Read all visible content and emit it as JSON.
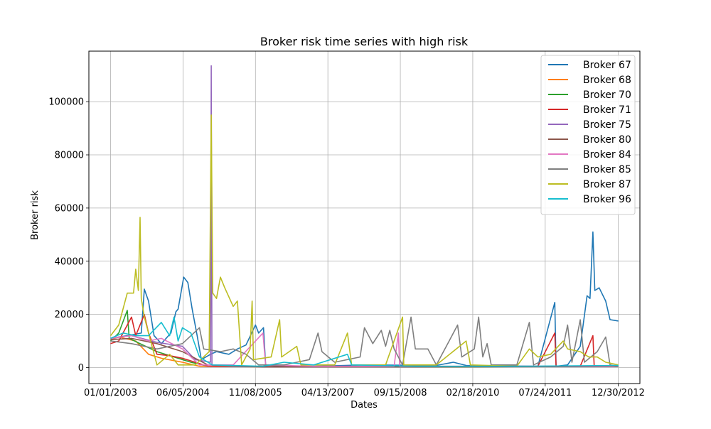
{
  "chart_data": {
    "type": "line",
    "title": "Broker risk time series with high risk",
    "xlabel": "Dates",
    "ylabel": "Broker risk",
    "x_tick_labels": [
      "01/01/2003",
      "06/05/2004",
      "11/08/2005",
      "04/13/2007",
      "09/15/2008",
      "02/18/2010",
      "07/24/2011",
      "12/30/2012"
    ],
    "x_tick_dates": [
      "2003-01-01",
      "2004-06-05",
      "2005-11-08",
      "2007-04-13",
      "2008-09-15",
      "2010-02-18",
      "2011-07-24",
      "2012-12-30"
    ],
    "xlim": [
      "2002-07-29",
      "2013-06-04"
    ],
    "y_ticks": [
      0,
      20000,
      40000,
      60000,
      80000,
      100000
    ],
    "ylim": [
      -6000,
      119000
    ],
    "grid": true,
    "legend_position": "top-right",
    "series": [
      {
        "name": "Broker 67",
        "color": "#1f77b4",
        "points": [
          [
            "2003-01-01",
            11000
          ],
          [
            "2003-05-01",
            12000
          ],
          [
            "2003-08-10",
            13000
          ],
          [
            "2003-09-01",
            29500
          ],
          [
            "2003-10-01",
            25000
          ],
          [
            "2003-11-10",
            12000
          ],
          [
            "2004-01-01",
            9000
          ],
          [
            "2004-03-10",
            13000
          ],
          [
            "2004-04-15",
            21000
          ],
          [
            "2004-05-01",
            22000
          ],
          [
            "2004-06-10",
            34000
          ],
          [
            "2004-07-10",
            32000
          ],
          [
            "2004-08-10",
            22000
          ],
          [
            "2004-09-15",
            12000
          ],
          [
            "2004-10-15",
            3000
          ],
          [
            "2004-12-20",
            5000
          ],
          [
            "2005-02-01",
            6000
          ],
          [
            "2005-05-01",
            5000
          ],
          [
            "2005-07-01",
            7000
          ],
          [
            "2005-09-01",
            8500
          ],
          [
            "2005-11-08",
            16000
          ],
          [
            "2005-12-01",
            13000
          ],
          [
            "2006-01-05",
            15000
          ],
          [
            "2006-01-20",
            1000
          ],
          [
            "2006-06-01",
            500
          ],
          [
            "2007-01-01",
            500
          ],
          [
            "2008-01-01",
            1000
          ],
          [
            "2009-06-01",
            800
          ],
          [
            "2009-10-01",
            2000
          ],
          [
            "2010-01-01",
            800
          ],
          [
            "2011-06-01",
            500
          ],
          [
            "2011-10-01",
            24500
          ],
          [
            "2011-10-10",
            500
          ],
          [
            "2012-01-01",
            1000
          ],
          [
            "2012-04-01",
            8000
          ],
          [
            "2012-05-20",
            27000
          ],
          [
            "2012-06-10",
            26000
          ],
          [
            "2012-07-01",
            51000
          ],
          [
            "2012-07-15",
            29000
          ],
          [
            "2012-08-15",
            30000
          ],
          [
            "2012-10-01",
            25000
          ],
          [
            "2012-11-01",
            18000
          ],
          [
            "2013-01-01",
            17500
          ]
        ]
      },
      {
        "name": "Broker 68",
        "color": "#ff7f0e",
        "points": [
          [
            "2003-01-01",
            10500
          ],
          [
            "2003-03-01",
            11500
          ],
          [
            "2003-07-01",
            10000
          ],
          [
            "2003-10-01",
            5000
          ],
          [
            "2004-01-01",
            3500
          ],
          [
            "2004-06-01",
            2000
          ],
          [
            "2004-10-01",
            500
          ],
          [
            "2006-01-01",
            300
          ],
          [
            "2008-01-01",
            300
          ],
          [
            "2010-01-01",
            300
          ],
          [
            "2012-01-01",
            500
          ],
          [
            "2013-01-01",
            700
          ]
        ]
      },
      {
        "name": "Broker 70",
        "color": "#2ca02c",
        "points": [
          [
            "2003-01-01",
            10000
          ],
          [
            "2003-03-01",
            13000
          ],
          [
            "2003-05-01",
            21500
          ],
          [
            "2003-05-15",
            11000
          ],
          [
            "2003-08-01",
            9000
          ],
          [
            "2003-12-01",
            6000
          ],
          [
            "2004-04-01",
            4000
          ],
          [
            "2004-08-01",
            2000
          ],
          [
            "2004-12-01",
            500
          ],
          [
            "2007-01-01",
            300
          ],
          [
            "2010-01-01",
            300
          ],
          [
            "2013-01-01",
            500
          ]
        ]
      },
      {
        "name": "Broker 71",
        "color": "#d62728",
        "points": [
          [
            "2003-01-01",
            9000
          ],
          [
            "2003-03-01",
            10000
          ],
          [
            "2003-06-01",
            19000
          ],
          [
            "2003-07-01",
            12000
          ],
          [
            "2003-09-01",
            20000
          ],
          [
            "2003-10-01",
            13000
          ],
          [
            "2003-12-01",
            5000
          ],
          [
            "2004-03-01",
            4500
          ],
          [
            "2004-06-01",
            3500
          ],
          [
            "2004-09-01",
            2000
          ],
          [
            "2004-12-01",
            500
          ],
          [
            "2006-01-01",
            400
          ],
          [
            "2008-01-01",
            400
          ],
          [
            "2010-01-01",
            400
          ],
          [
            "2011-06-01",
            500
          ],
          [
            "2011-10-01",
            13000
          ],
          [
            "2011-10-10",
            500
          ],
          [
            "2012-04-01",
            500
          ],
          [
            "2012-07-01",
            12000
          ],
          [
            "2012-07-10",
            500
          ],
          [
            "2013-01-01",
            800
          ]
        ]
      },
      {
        "name": "Broker 75",
        "color": "#9467bd",
        "points": [
          [
            "2003-01-01",
            11000
          ],
          [
            "2003-06-01",
            12000
          ],
          [
            "2003-12-01",
            9500
          ],
          [
            "2004-06-01",
            8000
          ],
          [
            "2004-09-01",
            3000
          ],
          [
            "2004-12-20",
            2000
          ],
          [
            "2004-12-25",
            113500
          ],
          [
            "2004-12-30",
            1000
          ],
          [
            "2005-06-01",
            500
          ],
          [
            "2006-01-01",
            300
          ],
          [
            "2009-01-01",
            300
          ],
          [
            "2013-01-01",
            400
          ]
        ]
      },
      {
        "name": "Broker 80",
        "color": "#8c564b",
        "points": [
          [
            "2003-01-01",
            10500
          ],
          [
            "2003-06-01",
            11000
          ],
          [
            "2003-12-01",
            9000
          ],
          [
            "2004-06-01",
            6000
          ],
          [
            "2004-12-01",
            1000
          ],
          [
            "2006-01-01",
            300
          ],
          [
            "2009-01-01",
            300
          ],
          [
            "2013-01-01",
            400
          ]
        ]
      },
      {
        "name": "Broker 84",
        "color": "#e377c2",
        "points": [
          [
            "2003-01-01",
            11000
          ],
          [
            "2003-06-01",
            12000
          ],
          [
            "2003-10-01",
            10000
          ],
          [
            "2004-01-01",
            11000
          ],
          [
            "2004-06-01",
            7000
          ],
          [
            "2004-10-01",
            1000
          ],
          [
            "2005-06-01",
            1000
          ],
          [
            "2006-01-01",
            13000
          ],
          [
            "2006-01-20",
            1000
          ],
          [
            "2007-01-01",
            500
          ],
          [
            "2008-08-01",
            500
          ],
          [
            "2008-09-01",
            13000
          ],
          [
            "2008-09-10",
            500
          ],
          [
            "2010-01-01",
            500
          ],
          [
            "2013-01-01",
            600
          ]
        ]
      },
      {
        "name": "Broker 85",
        "color": "#7f7f7f",
        "points": [
          [
            "2003-01-01",
            10000
          ],
          [
            "2003-06-01",
            9000
          ],
          [
            "2003-12-01",
            7000
          ],
          [
            "2004-06-01",
            9000
          ],
          [
            "2004-10-01",
            15000
          ],
          [
            "2004-11-01",
            7000
          ],
          [
            "2005-03-01",
            6000
          ],
          [
            "2005-06-01",
            7000
          ],
          [
            "2005-09-01",
            5000
          ],
          [
            "2005-12-01",
            1000
          ],
          [
            "2006-06-01",
            1000
          ],
          [
            "2006-12-01",
            3000
          ],
          [
            "2007-02-01",
            13000
          ],
          [
            "2007-03-01",
            6000
          ],
          [
            "2007-06-01",
            2000
          ],
          [
            "2007-12-01",
            4000
          ],
          [
            "2008-01-01",
            15000
          ],
          [
            "2008-03-01",
            9000
          ],
          [
            "2008-05-01",
            14000
          ],
          [
            "2008-06-01",
            8000
          ],
          [
            "2008-07-01",
            14000
          ],
          [
            "2008-08-01",
            7000
          ],
          [
            "2008-10-01",
            1000
          ],
          [
            "2008-12-01",
            19000
          ],
          [
            "2009-01-01",
            7000
          ],
          [
            "2009-04-01",
            7000
          ],
          [
            "2009-06-01",
            1000
          ],
          [
            "2009-09-01",
            10000
          ],
          [
            "2009-11-01",
            16000
          ],
          [
            "2009-12-01",
            4000
          ],
          [
            "2010-03-01",
            7000
          ],
          [
            "2010-04-01",
            19000
          ],
          [
            "2010-05-01",
            4000
          ],
          [
            "2010-06-01",
            9000
          ],
          [
            "2010-07-01",
            1000
          ],
          [
            "2011-01-01",
            1000
          ],
          [
            "2011-04-01",
            17000
          ],
          [
            "2011-05-01",
            1000
          ],
          [
            "2011-09-01",
            4000
          ],
          [
            "2011-12-01",
            8000
          ],
          [
            "2012-01-01",
            16000
          ],
          [
            "2012-02-01",
            2000
          ],
          [
            "2012-04-01",
            18000
          ],
          [
            "2012-05-01",
            2000
          ],
          [
            "2012-08-01",
            6000
          ],
          [
            "2012-10-01",
            11500
          ],
          [
            "2012-11-01",
            1000
          ],
          [
            "2013-01-01",
            500
          ]
        ]
      },
      {
        "name": "Broker 87",
        "color": "#bcbd22",
        "points": [
          [
            "2003-01-01",
            12000
          ],
          [
            "2003-03-01",
            16000
          ],
          [
            "2003-05-01",
            28000
          ],
          [
            "2003-06-15",
            28000
          ],
          [
            "2003-07-01",
            37000
          ],
          [
            "2003-07-20",
            29000
          ],
          [
            "2003-08-01",
            56500
          ],
          [
            "2003-08-10",
            26000
          ],
          [
            "2003-09-01",
            19000
          ],
          [
            "2003-10-01",
            13000
          ],
          [
            "2003-12-01",
            1000
          ],
          [
            "2004-03-01",
            5000
          ],
          [
            "2004-05-01",
            1000
          ],
          [
            "2004-09-01",
            1000
          ],
          [
            "2004-12-10",
            6000
          ],
          [
            "2004-12-25",
            95000
          ],
          [
            "2005-01-05",
            28000
          ],
          [
            "2005-02-01",
            26000
          ],
          [
            "2005-03-01",
            34000
          ],
          [
            "2005-04-01",
            30000
          ],
          [
            "2005-06-01",
            23000
          ],
          [
            "2005-07-01",
            25000
          ],
          [
            "2005-08-01",
            1000
          ],
          [
            "2005-10-01",
            7000
          ],
          [
            "2005-10-15",
            25000
          ],
          [
            "2005-10-25",
            3000
          ],
          [
            "2006-03-01",
            4000
          ],
          [
            "2006-05-01",
            18000
          ],
          [
            "2006-05-15",
            4000
          ],
          [
            "2006-09-01",
            8000
          ],
          [
            "2006-10-01",
            1000
          ],
          [
            "2007-06-01",
            1000
          ],
          [
            "2007-09-01",
            13000
          ],
          [
            "2007-10-01",
            1000
          ],
          [
            "2008-06-01",
            1000
          ],
          [
            "2008-10-01",
            19000
          ],
          [
            "2008-10-10",
            1000
          ],
          [
            "2009-06-01",
            1000
          ],
          [
            "2010-01-01",
            10000
          ],
          [
            "2010-02-01",
            1000
          ],
          [
            "2011-01-01",
            500
          ],
          [
            "2011-04-01",
            7000
          ],
          [
            "2011-06-01",
            4000
          ],
          [
            "2011-09-01",
            5000
          ],
          [
            "2011-12-01",
            10000
          ],
          [
            "2012-01-01",
            7000
          ],
          [
            "2012-04-01",
            6000
          ],
          [
            "2012-06-01",
            4000
          ],
          [
            "2012-08-01",
            4000
          ],
          [
            "2012-10-01",
            2000
          ],
          [
            "2013-01-01",
            1000
          ]
        ]
      },
      {
        "name": "Broker 96",
        "color": "#17becf",
        "points": [
          [
            "2003-01-01",
            11000
          ],
          [
            "2003-04-01",
            13000
          ],
          [
            "2003-07-01",
            12000
          ],
          [
            "2003-10-01",
            12000
          ],
          [
            "2004-01-01",
            17000
          ],
          [
            "2004-03-01",
            12000
          ],
          [
            "2004-04-01",
            19000
          ],
          [
            "2004-05-01",
            10000
          ],
          [
            "2004-06-01",
            15000
          ],
          [
            "2004-08-01",
            13000
          ],
          [
            "2004-10-01",
            4000
          ],
          [
            "2005-01-01",
            1000
          ],
          [
            "2006-01-01",
            500
          ],
          [
            "2006-06-01",
            2000
          ],
          [
            "2007-01-01",
            1000
          ],
          [
            "2007-09-01",
            5000
          ],
          [
            "2007-10-01",
            1000
          ],
          [
            "2009-01-01",
            500
          ],
          [
            "2011-01-01",
            500
          ],
          [
            "2013-01-01",
            800
          ]
        ]
      }
    ]
  }
}
